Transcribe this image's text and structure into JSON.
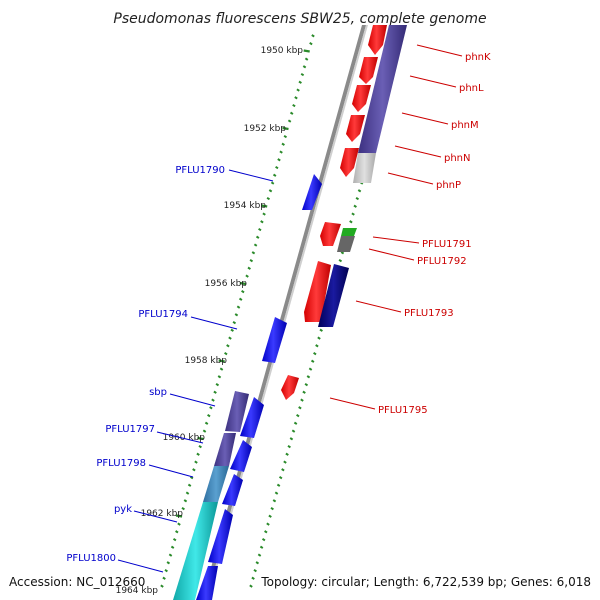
{
  "title": "Pseudomonas fluorescens SBW25, complete genome",
  "footer": {
    "accession": "Accession: NC_012660",
    "topology": "Topology: circular; Length: 6,722,539 bp; Genes: 6,018"
  },
  "ticks": [
    "1950 kbp",
    "1952 kbp",
    "1954 kbp",
    "1956 kbp",
    "1958 kbp",
    "1960 kbp",
    "1962 kbp",
    "1964 kbp"
  ],
  "genes_left": [
    "PFLU1790",
    "PFLU1794",
    "sbp",
    "PFLU1797",
    "PFLU1798",
    "pyk",
    "PFLU1800"
  ],
  "genes_right": [
    "phnK",
    "phnL",
    "phnM",
    "phnN",
    "phnP",
    "PFLU1791",
    "PFLU1792",
    "PFLU1793",
    "PFLU1795"
  ],
  "colors": {
    "forward_cds": "#0000ff",
    "reverse_cds": "#ff0000",
    "purple_feature": "#4b3f9a",
    "navy_feature": "#000080",
    "teal_feature": "#3b86b8",
    "cyan_feature": "#18c8c8",
    "green_tick": "#2a8a2a"
  }
}
